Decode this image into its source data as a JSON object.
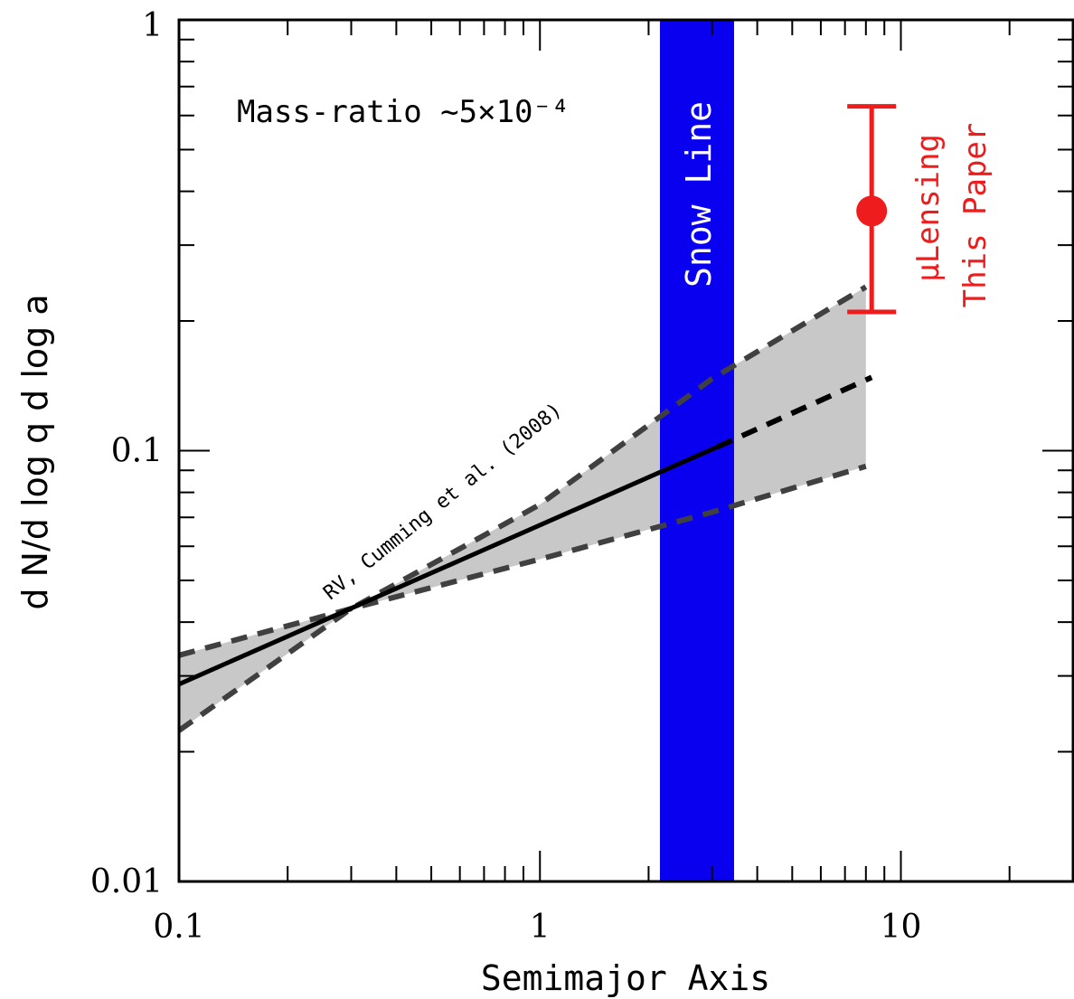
{
  "chart_data": {
    "type": "line",
    "title": "",
    "annotation": "Mass-ratio ~5×10⁻⁴",
    "xlabel": "Semimajor Axis",
    "ylabel": "d N/d log q d log a",
    "x_scale": "log",
    "y_scale": "log",
    "xlim": [
      0.1,
      30
    ],
    "ylim": [
      0.01,
      1
    ],
    "x_ticks": [
      {
        "value": 0.1,
        "label": "0.1"
      },
      {
        "value": 1,
        "label": "1"
      },
      {
        "value": 10,
        "label": "10"
      }
    ],
    "y_ticks": [
      {
        "value": 0.01,
        "label": "0.01"
      },
      {
        "value": 0.1,
        "label": "0.1"
      },
      {
        "value": 1,
        "label": "1"
      }
    ],
    "snow_line": {
      "label": "Snow Line",
      "x_range": [
        2.15,
        3.45
      ],
      "color": "#0a00f0"
    },
    "rv_model": {
      "label": "RV, Cumming et al. (2008)",
      "central": {
        "solid": [
          [
            0.1,
            0.0287
          ],
          [
            3.1,
            0.102
          ]
        ],
        "dashed": [
          [
            3.1,
            0.102
          ],
          [
            8.3,
            0.148
          ]
        ]
      },
      "upper": [
        [
          0.1,
          0.0224
        ],
        [
          0.3,
          0.043
        ],
        [
          1,
          0.075
        ],
        [
          3,
          0.147
        ],
        [
          8,
          0.24
        ]
      ],
      "lower": [
        [
          0.1,
          0.0335
        ],
        [
          0.3,
          0.043
        ],
        [
          1,
          0.056
        ],
        [
          3,
          0.072
        ],
        [
          8,
          0.092
        ]
      ],
      "band_color": "#c8c8c8",
      "line_color": "#000000",
      "envelope_color": "#404040"
    },
    "microlensing": {
      "label_line1": "μLensing",
      "label_line2": "This Paper",
      "x": 8.3,
      "y": 0.36,
      "y_low": 0.21,
      "y_high": 0.63,
      "color": "#ee1c1c"
    }
  }
}
